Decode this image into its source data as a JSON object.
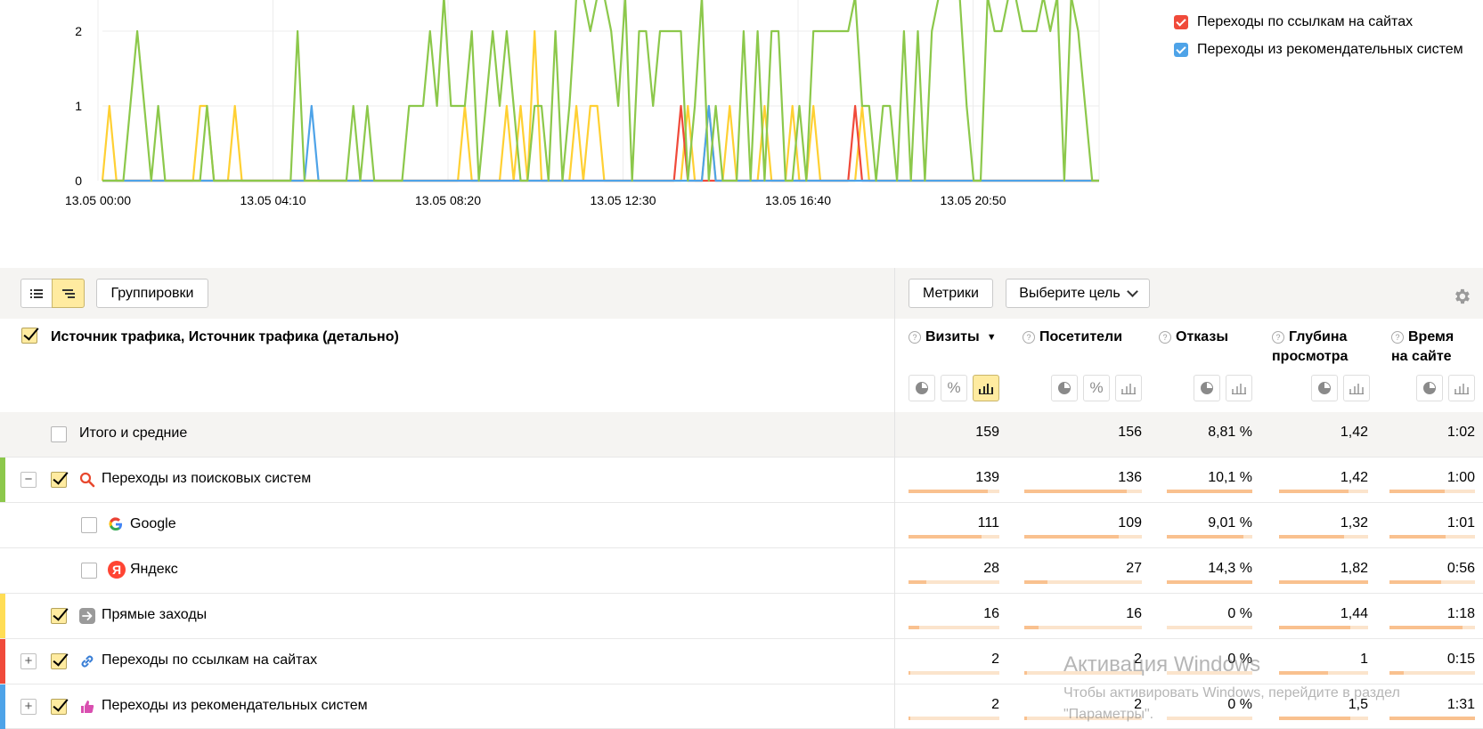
{
  "chart": {
    "yTicks": [
      "0",
      "1",
      "2"
    ],
    "xTicks": [
      "13.05 00:00",
      "13.05 04:10",
      "13.05 08:20",
      "13.05 12:30",
      "13.05 16:40",
      "13.05 20:50"
    ]
  },
  "legend": [
    {
      "label": "Переходы по ссылкам на сайтах",
      "color": "#f04a3a"
    },
    {
      "label": "Переходы из рекомендательных систем",
      "color": "#4ea3e8"
    }
  ],
  "toolbar": {
    "grouping_label": "Группировки",
    "metrics_label": "Метрики",
    "goal_label": "Выберите цель"
  },
  "header": {
    "title": "Источник трафика, Источник трафика (детально)",
    "help_glyph": "?",
    "sort_glyph": "▼",
    "percent_glyph": "%",
    "columns": {
      "visits": "Визиты",
      "visitors": "Посетители",
      "bounces": "Отказы",
      "depth": "Глубина просмотра",
      "time": "Время на сайте"
    }
  },
  "rows": [
    {
      "label": "Итого и средние",
      "visits": "159",
      "visitors": "156",
      "bounces": "8,81 %",
      "depth": "1,42",
      "time": "1:02",
      "bars": null
    },
    {
      "label": "Переходы из поисковых систем",
      "expander": "−",
      "visits": "139",
      "visitors": "136",
      "bounces": "10,1 %",
      "depth": "1,42",
      "time": "1:00",
      "stripe": "#8cc84b",
      "bars": [
        0.87,
        0.87,
        1.0,
        0.78,
        0.65
      ]
    },
    {
      "label": "Google",
      "visits": "111",
      "visitors": "109",
      "bounces": "9,01 %",
      "depth": "1,32",
      "time": "1:01",
      "bars": [
        0.8,
        0.8,
        0.9,
        0.73,
        0.66
      ]
    },
    {
      "label": "Яндекс",
      "icon_letter": "Я",
      "visits": "28",
      "visitors": "27",
      "bounces": "14,3 %",
      "depth": "1,82",
      "time": "0:56",
      "bars": [
        0.2,
        0.2,
        1.0,
        1.0,
        0.6
      ]
    },
    {
      "label": "Прямые заходы",
      "visits": "16",
      "visitors": "16",
      "bounces": "0 %",
      "depth": "1,44",
      "time": "1:18",
      "stripe": "#ffdd55",
      "bars": [
        0.12,
        0.12,
        0.0,
        0.8,
        0.85
      ]
    },
    {
      "label": "Переходы по ссылкам на сайтах",
      "expander": "+",
      "visits": "2",
      "visitors": "2",
      "bounces": "0 %",
      "depth": "1",
      "time": "0:15",
      "stripe": "#f04a3a",
      "bars": [
        0.02,
        0.02,
        0.0,
        0.55,
        0.17
      ]
    },
    {
      "label": "Переходы из рекомендательных систем",
      "expander": "+",
      "visits": "2",
      "visitors": "2",
      "bounces": "0 %",
      "depth": "1,5",
      "time": "1:31",
      "stripe": "#4ea3e8",
      "bars": [
        0.02,
        0.02,
        0.0,
        0.8,
        1.0
      ]
    }
  ],
  "watermark": {
    "title": "Активация Windows",
    "line1": "Чтобы активировать Windows, перейдите в раздел",
    "line2": "\"Параметры\"."
  },
  "colors": {
    "search": "#8cc84b",
    "direct": "#ffd033",
    "links": "#f04a3a",
    "recommend": "#4ea3e8"
  }
}
